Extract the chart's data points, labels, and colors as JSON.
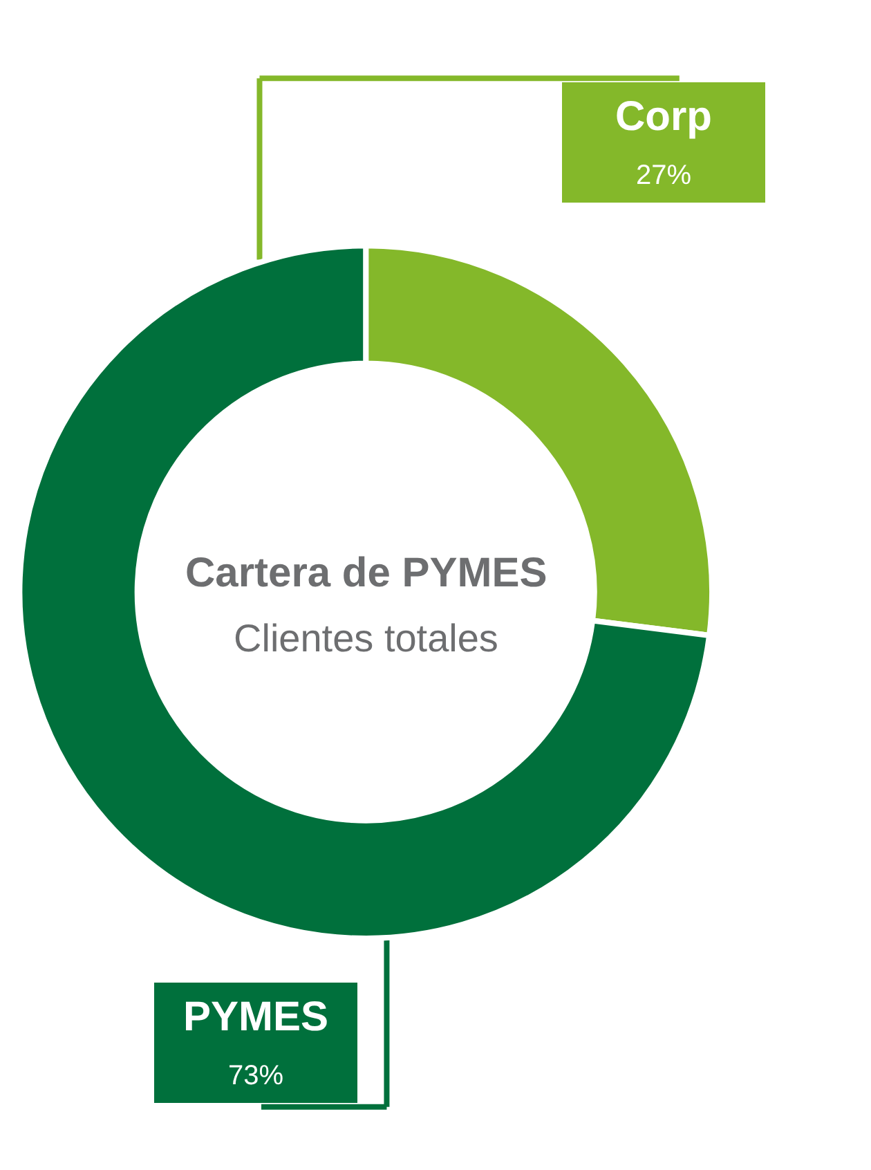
{
  "chart_data": {
    "type": "donut",
    "title": "Cartera de PYMES",
    "subtitle": "Clientes totales",
    "categories": [
      "Corp",
      "PYMES"
    ],
    "values": [
      27,
      73
    ],
    "value_labels": [
      "27%",
      "73%"
    ],
    "colors": [
      "#84b82a",
      "#00703c"
    ],
    "legend": false
  }
}
